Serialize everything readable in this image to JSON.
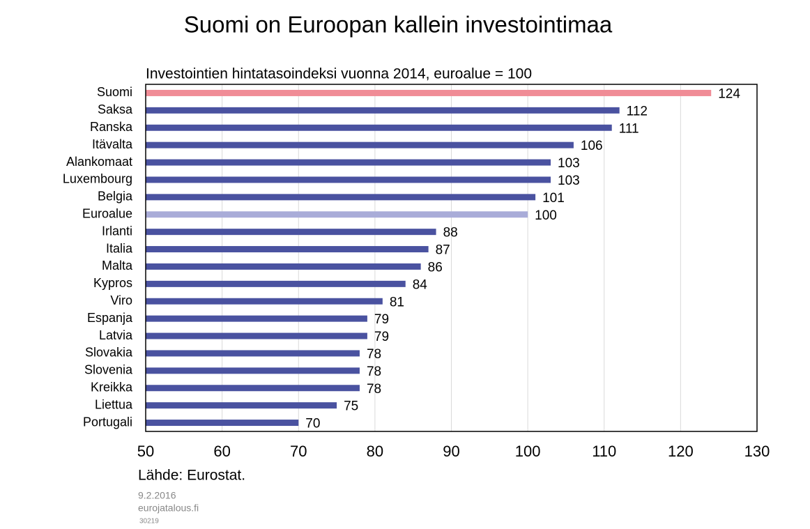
{
  "chart_data": {
    "type": "hbar",
    "title": "Suomi on Euroopan kallein investointimaa",
    "subtitle": "Investointien hintatasoindeksi vuonna 2014, euroalue = 100",
    "categories": [
      "Suomi",
      "Saksa",
      "Ranska",
      "Itävalta",
      "Alankomaat",
      "Luxembourg",
      "Belgia",
      "Euroalue",
      "Irlanti",
      "Italia",
      "Malta",
      "Kypros",
      "Viro",
      "Espanja",
      "Latvia",
      "Slovakia",
      "Slovenia",
      "Kreikka",
      "Liettua",
      "Portugali"
    ],
    "values": [
      124,
      112,
      111,
      106,
      103,
      103,
      101,
      100,
      88,
      87,
      86,
      84,
      81,
      79,
      79,
      78,
      78,
      78,
      75,
      70
    ],
    "colors": [
      "#f08c96",
      "#4a52a0",
      "#4a52a0",
      "#4a52a0",
      "#4a52a0",
      "#4a52a0",
      "#4a52a0",
      "#a9acd8",
      "#4a52a0",
      "#4a52a0",
      "#4a52a0",
      "#4a52a0",
      "#4a52a0",
      "#4a52a0",
      "#4a52a0",
      "#4a52a0",
      "#4a52a0",
      "#4a52a0",
      "#4a52a0",
      "#4a52a0"
    ],
    "xlim": [
      50,
      130
    ],
    "xticks": [
      50,
      60,
      70,
      80,
      90,
      100,
      110,
      120,
      130
    ],
    "grid": true,
    "source": "Lähde: Eurostat.",
    "date": "9.2.2016",
    "website": "eurojatalous.fi",
    "code": "30219"
  }
}
